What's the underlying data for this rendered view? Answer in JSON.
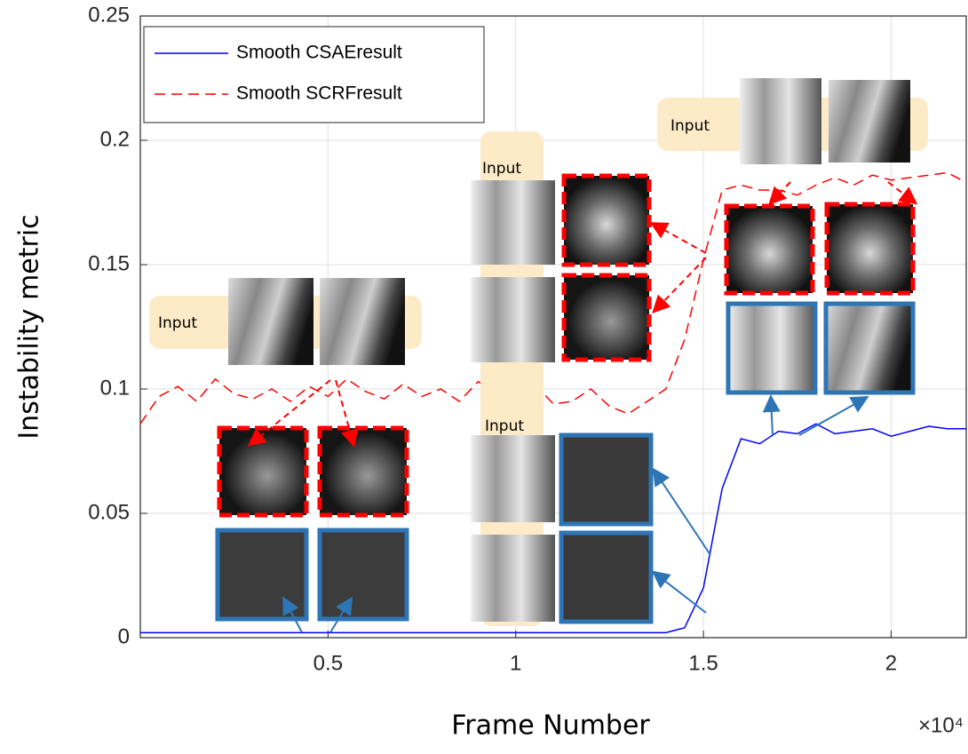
{
  "chart_data": {
    "type": "line",
    "x_label": "Frame Number",
    "y_label": "Instability metric",
    "x_multiplier": "×10⁴",
    "x": [
      0,
      0.05,
      0.1,
      0.15,
      0.2,
      0.25,
      0.3,
      0.35,
      0.4,
      0.45,
      0.5,
      0.55,
      0.6,
      0.65,
      0.7,
      0.75,
      0.8,
      0.85,
      0.9,
      0.95,
      1,
      1.05,
      1.1,
      1.15,
      1.2,
      1.25,
      1.3,
      1.35,
      1.4,
      1.45,
      1.5,
      1.55,
      1.6,
      1.65,
      1.7,
      1.75,
      1.8,
      1.85,
      1.9,
      1.95,
      2,
      2.05,
      2.1,
      2.15,
      2.2
    ],
    "series": [
      {
        "name": "Smooth CSAEresult",
        "color": "#0000ff",
        "dash": false,
        "values": [
          0.002,
          0.002,
          0.002,
          0.002,
          0.002,
          0.002,
          0.002,
          0.002,
          0.002,
          0.002,
          0.002,
          0.002,
          0.002,
          0.002,
          0.002,
          0.002,
          0.002,
          0.002,
          0.002,
          0.002,
          0.002,
          0.002,
          0.002,
          0.002,
          0.002,
          0.002,
          0.002,
          0.002,
          0.002,
          0.004,
          0.02,
          0.06,
          0.08,
          0.078,
          0.083,
          0.082,
          0.086,
          0.082,
          0.083,
          0.084,
          0.081,
          0.083,
          0.085,
          0.084,
          0.084
        ]
      },
      {
        "name": "Smooth SCRFresult",
        "color": "#ff0000",
        "dash": true,
        "values": [
          0.086,
          0.097,
          0.101,
          0.095,
          0.104,
          0.098,
          0.096,
          0.1,
          0.095,
          0.101,
          0.097,
          0.104,
          0.099,
          0.096,
          0.102,
          0.097,
          0.1,
          0.095,
          0.103,
          0.097,
          0.097,
          0.102,
          0.094,
          0.095,
          0.1,
          0.093,
          0.09,
          0.095,
          0.1,
          0.12,
          0.152,
          0.18,
          0.182,
          0.18,
          0.18,
          0.178,
          0.182,
          0.185,
          0.182,
          0.186,
          0.184,
          0.185,
          0.186,
          0.187,
          0.183
        ]
      }
    ],
    "xlim": [
      0,
      2.2
    ],
    "ylim": [
      0,
      0.25
    ],
    "xticks": [
      0.5,
      1,
      1.5,
      2
    ],
    "yticks": [
      0,
      0.05,
      0.1,
      0.15,
      0.2,
      0.25
    ],
    "grid": true,
    "legend": "upper left",
    "annotations": [
      "Input",
      "Input",
      "Input",
      "Input"
    ]
  }
}
